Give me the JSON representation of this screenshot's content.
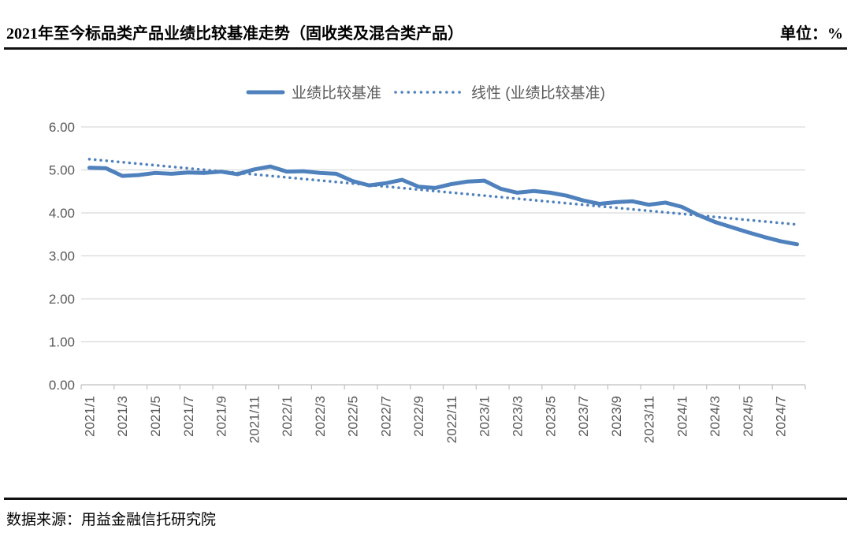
{
  "header": {
    "title": "2021年至今标品类产品业绩比较基准走势（固收类及混合类产品）",
    "unit_label": "单位：%"
  },
  "legend": {
    "items": [
      {
        "label": "业绩比较基准",
        "style": "solid"
      },
      {
        "label": "线性 (业绩比较基准)",
        "style": "dotted"
      }
    ]
  },
  "footer": {
    "source": "数据来源：用益金融信托研究院"
  },
  "colors": {
    "series": "#4F81BD",
    "axis_text": "#595959",
    "gridline": "#D9D9D9",
    "axis_line": "#BFBFBF",
    "rule": "#000000"
  },
  "chart_data": {
    "type": "line",
    "title": "2021年至今标品类产品业绩比较基准走势（固收类及混合类产品）",
    "unit": "%",
    "categories": [
      "2021/1",
      "2021/2",
      "2021/3",
      "2021/4",
      "2021/5",
      "2021/6",
      "2021/7",
      "2021/8",
      "2021/9",
      "2021/10",
      "2021/11",
      "2021/12",
      "2022/1",
      "2022/2",
      "2022/3",
      "2022/4",
      "2022/5",
      "2022/6",
      "2022/7",
      "2022/8",
      "2022/9",
      "2022/10",
      "2022/11",
      "2022/12",
      "2023/1",
      "2023/2",
      "2023/3",
      "2023/4",
      "2023/5",
      "2023/6",
      "2023/7",
      "2023/8",
      "2023/9",
      "2023/10",
      "2023/11",
      "2023/12",
      "2024/1",
      "2024/2",
      "2024/3",
      "2024/4",
      "2024/5",
      "2024/6",
      "2024/7",
      "2024/8"
    ],
    "series": [
      {
        "name": "业绩比较基准",
        "style": "solid",
        "values": [
          5.05,
          5.04,
          4.86,
          4.88,
          4.93,
          4.91,
          4.94,
          4.93,
          4.96,
          4.9,
          5.01,
          5.08,
          4.96,
          4.97,
          4.93,
          4.91,
          4.74,
          4.64,
          4.69,
          4.77,
          4.61,
          4.58,
          4.67,
          4.73,
          4.75,
          4.56,
          4.47,
          4.51,
          4.47,
          4.4,
          4.29,
          4.21,
          4.25,
          4.27,
          4.19,
          4.24,
          4.14,
          3.95,
          3.79,
          3.67,
          3.55,
          3.44,
          3.34,
          3.27
        ]
      },
      {
        "name": "线性 (业绩比较基准)",
        "style": "dotted",
        "trend": "linear",
        "start_value": 5.25,
        "end_value": 3.73
      }
    ],
    "ylim": [
      0,
      6
    ],
    "ytick_step": 1,
    "ytick_labels": [
      "0.00",
      "1.00",
      "2.00",
      "3.00",
      "4.00",
      "5.00",
      "6.00"
    ],
    "xtick_labels": [
      "2021/1",
      "2021/3",
      "2021/5",
      "2021/7",
      "2021/9",
      "2021/11",
      "2022/1",
      "2022/3",
      "2022/5",
      "2022/7",
      "2022/9",
      "2022/11",
      "2023/1",
      "2023/3",
      "2023/5",
      "2023/7",
      "2023/9",
      "2023/11",
      "2024/1",
      "2024/3",
      "2024/5",
      "2024/7"
    ],
    "grid": true,
    "legend_position": "top"
  }
}
